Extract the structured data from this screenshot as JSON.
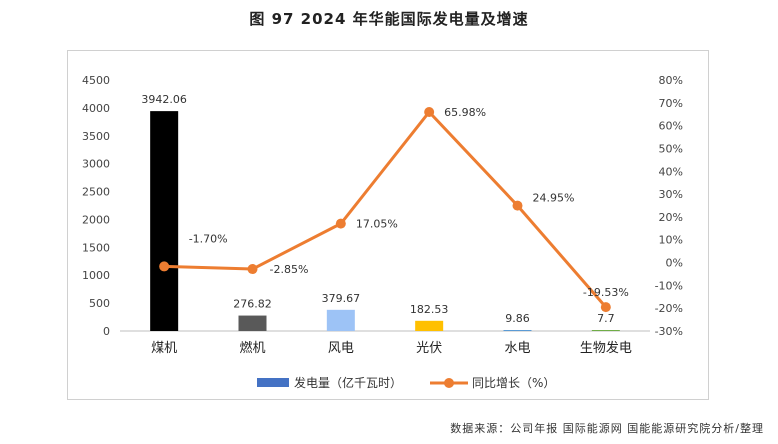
{
  "header": {
    "title": "图 97 2024 年华能国际发电量及增速"
  },
  "source": "数据来源：公司年报 国际能源网 国能能源研究院分析/整理",
  "chart_data": {
    "type": "bar",
    "categories": [
      "煤机",
      "燃机",
      "风电",
      "光伏",
      "水电",
      "生物发电"
    ],
    "series": [
      {
        "name": "发电量（亿千瓦时）",
        "type": "bar",
        "values": [
          3942.06,
          276.82,
          379.67,
          182.53,
          9.86,
          7.7
        ],
        "labels": [
          "3942.06",
          "276.82",
          "379.67",
          "182.53",
          "9.86",
          "7.7"
        ],
        "colors": [
          "#000000",
          "#595959",
          "#9dc3f6",
          "#ffc000",
          "#5b9bd5",
          "#70ad47"
        ],
        "legend_color": "#4472c4"
      },
      {
        "name": "同比增长（%）",
        "type": "line",
        "values": [
          -1.7,
          -2.85,
          17.05,
          65.98,
          24.95,
          -19.53
        ],
        "labels": [
          "-1.70%",
          "-2.85%",
          "17.05%",
          "65.98%",
          "24.95%",
          "-19.53%"
        ],
        "color": "#ed7d31"
      }
    ],
    "y_left": {
      "ylim": [
        0,
        4500
      ],
      "ticks": [
        "0",
        "500",
        "1000",
        "1500",
        "2000",
        "2500",
        "3000",
        "3500",
        "4000",
        "4500"
      ]
    },
    "y_right": {
      "ylim": [
        -30,
        80
      ],
      "ticks": [
        "-30%",
        "-20%",
        "-10%",
        "0%",
        "10%",
        "20%",
        "30%",
        "40%",
        "50%",
        "60%",
        "70%",
        "80%"
      ]
    },
    "legend": "bottom",
    "grid": false
  }
}
